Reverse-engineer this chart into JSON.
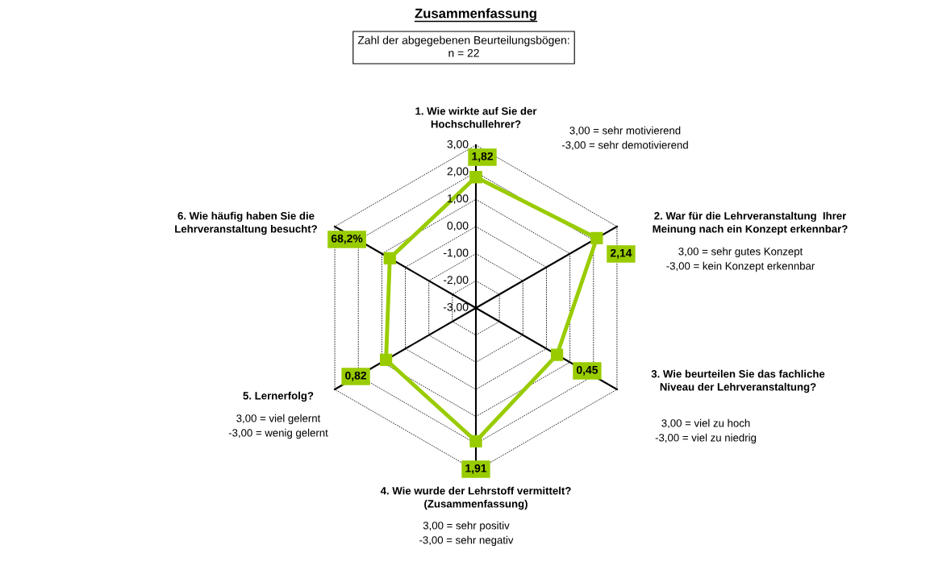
{
  "chart_data": {
    "type": "radar",
    "title": "Zusammenfassung",
    "subtitle": "Zahl der abgegebenen Beurteilungsbögen:\nn = 22",
    "categories": [
      "1. Wie wirkte auf Sie der\nHochschullehrer?",
      "2. War für die Lehrveranstaltung  Ihrer\nMeinung nach ein Konzept erkennbar?",
      "3. Wie beurteilen Sie das fachliche\nNiveau der Lehrveranstaltung?",
      "4. Wie wurde der Lehrstoff vermittelt?\n(Zusammenfassung)",
      "5. Lernerfolg?",
      "6. Wie häufig haben Sie die\nLehrveranstaltung besucht?"
    ],
    "series": [
      {
        "color": "#99cc00",
        "values": [
          1.82,
          2.14,
          0.45,
          1.91,
          0.82,
          0.66
        ],
        "value_labels": [
          "1,82",
          "2,14",
          "0,45",
          "1,91",
          "0,82",
          null
        ]
      }
    ],
    "ylim": [
      -3,
      3
    ],
    "yticks": [
      {
        "value": -3,
        "label": "-3,00"
      },
      {
        "value": -2,
        "label": "-2,00"
      },
      {
        "value": -1,
        "label": "-1,00"
      },
      {
        "value": 0,
        "label": "0,00"
      },
      {
        "value": 1,
        "label": "1,00"
      },
      {
        "value": 2,
        "label": "2,00"
      },
      {
        "value": 3,
        "label": "3,00"
      }
    ],
    "grid": true,
    "marker": "square",
    "line_style": "solid",
    "annotations": [
      "3,00 = sehr motivierend\n-3,00 = sehr demotivierend",
      "3,00 = sehr gutes Konzept\n-3,00 = kein Konzept erkennbar",
      "3,00 = viel zu hoch\n-3,00 = viel zu niedrig",
      "3,00 = sehr positiv\n-3,00 = sehr negativ",
      "3,00 = viel gelernt\n-3,00 = wenig gelernt",
      "68,2%"
    ]
  }
}
